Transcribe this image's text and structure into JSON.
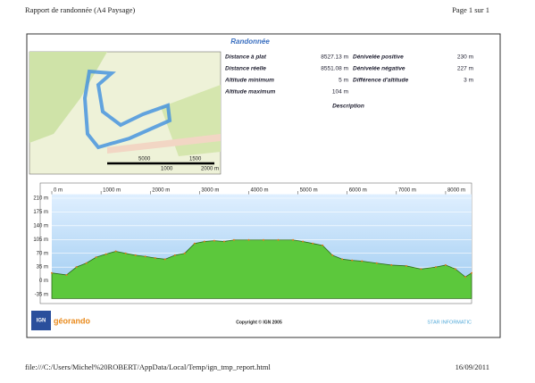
{
  "header": {
    "title": "Rapport de randonnée (A4 Paysage)",
    "page": "Page 1 sur 1"
  },
  "report_title": "Randonnée",
  "map": {
    "scale_labels": [
      "5000",
      "1000",
      "1500",
      "2000 m"
    ]
  },
  "stats": {
    "left": [
      {
        "label": "Distance à plat",
        "value": "8527.13 m"
      },
      {
        "label": "Distance réelle",
        "value": "8551.08 m"
      },
      {
        "label": "Altitude minimum",
        "value": "5 m"
      },
      {
        "label": "Altitude maximum",
        "value": "104 m"
      }
    ],
    "right": [
      {
        "label": "Dénivelée positive",
        "value": "230 m"
      },
      {
        "label": "Dénivelée négative",
        "value": "227 m"
      },
      {
        "label": "Différence d'altitude",
        "value": "3 m"
      }
    ]
  },
  "description_label": "Description",
  "chart_data": {
    "type": "area",
    "color": "#5cc83c",
    "x": [
      0,
      300,
      500,
      700,
      900,
      1100,
      1300,
      1500,
      1700,
      1900,
      2100,
      2300,
      2500,
      2700,
      2900,
      3100,
      3300,
      3500,
      3700,
      4000,
      4300,
      4600,
      4900,
      5100,
      5300,
      5500,
      5700,
      5900,
      6100,
      6300,
      6600,
      6900,
      7200,
      7500,
      7800,
      8000,
      8200,
      8400,
      8527
    ],
    "values": [
      20,
      15,
      35,
      45,
      60,
      68,
      75,
      70,
      65,
      62,
      58,
      55,
      65,
      70,
      95,
      100,
      102,
      100,
      104,
      104,
      104,
      104,
      104,
      100,
      95,
      90,
      65,
      55,
      52,
      50,
      45,
      40,
      38,
      30,
      35,
      40,
      30,
      10,
      20
    ],
    "xlim": [
      0,
      8527
    ],
    "ylim": [
      -45,
      220
    ],
    "xticks": [
      {
        "value": 0,
        "label": "0 m"
      },
      {
        "value": 1000,
        "label": "1000 m"
      },
      {
        "value": 2000,
        "label": "2000 m"
      },
      {
        "value": 3000,
        "label": "3000 m"
      },
      {
        "value": 4000,
        "label": "4000 m"
      },
      {
        "value": 5000,
        "label": "5000 m"
      },
      {
        "value": 6000,
        "label": "6000 m"
      },
      {
        "value": 7000,
        "label": "7000 m"
      },
      {
        "value": 8000,
        "label": "8000 m"
      }
    ],
    "yticks": [
      {
        "value": 210,
        "label": "210 m"
      },
      {
        "value": 175,
        "label": "175 m"
      },
      {
        "value": 140,
        "label": "140 m"
      },
      {
        "value": 105,
        "label": "105 m"
      },
      {
        "value": 70,
        "label": "70 m"
      },
      {
        "value": 35,
        "label": "35 m"
      },
      {
        "value": 0,
        "label": "0 m"
      },
      {
        "value": -35,
        "label": "-35 m"
      }
    ],
    "grid": true
  },
  "footer": {
    "logo_left": "IGN",
    "logo_brand": "géorando",
    "copyright": "Copyright © IGN 2005",
    "logo_right": "STAR INFORMATIC"
  },
  "page_footer": {
    "url": "file:///C:/Users/Michel%20ROBERT/AppData/Local/Temp/ign_tmp_report.html",
    "date": "16/09/2011"
  }
}
